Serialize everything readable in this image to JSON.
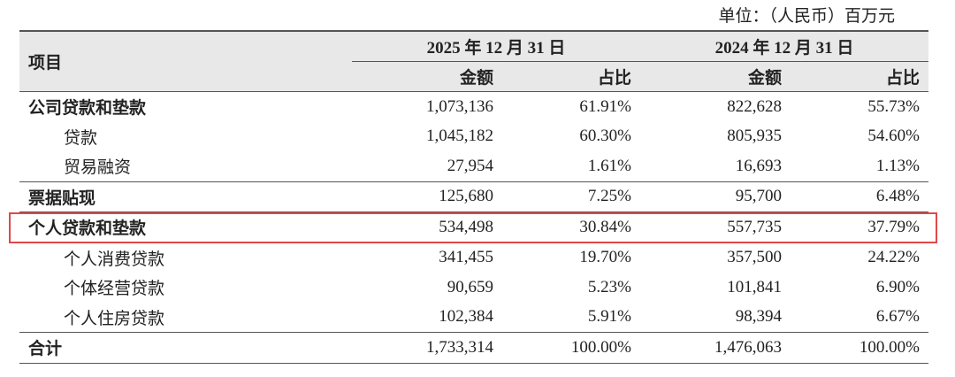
{
  "header": {
    "unit": "单位：（人民币）百万元"
  },
  "table": {
    "item_header": "项目",
    "groups": [
      "2025 年 12 月 31 日",
      "2024 年 12 月 31 日"
    ],
    "subcolumns": [
      "金额",
      "占比",
      "金额",
      "占比"
    ],
    "rows": [
      [
        "公司贷款和垫款",
        "1,073,136",
        "61.91%",
        "822,628",
        "55.73%"
      ],
      [
        "贷款",
        "1,045,182",
        "60.30%",
        "805,935",
        "54.60%"
      ],
      [
        "贸易融资",
        "27,954",
        "1.61%",
        "16,693",
        "1.13%"
      ],
      [
        "票据贴现",
        "125,680",
        "7.25%",
        "95,700",
        "6.48%"
      ],
      [
        "个人贷款和垫款",
        "534,498",
        "30.84%",
        "557,735",
        "37.79%"
      ],
      [
        "个人消费贷款",
        "341,455",
        "19.70%",
        "357,500",
        "24.22%"
      ],
      [
        "个体经营贷款",
        "90,659",
        "5.23%",
        "101,841",
        "6.90%"
      ],
      [
        "个人住房贷款",
        "102,384",
        "5.91%",
        "98,394",
        "6.67%"
      ],
      [
        "合计",
        "1,733,314",
        "100.00%",
        "1,476,063",
        "100.00%"
      ]
    ]
  }
}
